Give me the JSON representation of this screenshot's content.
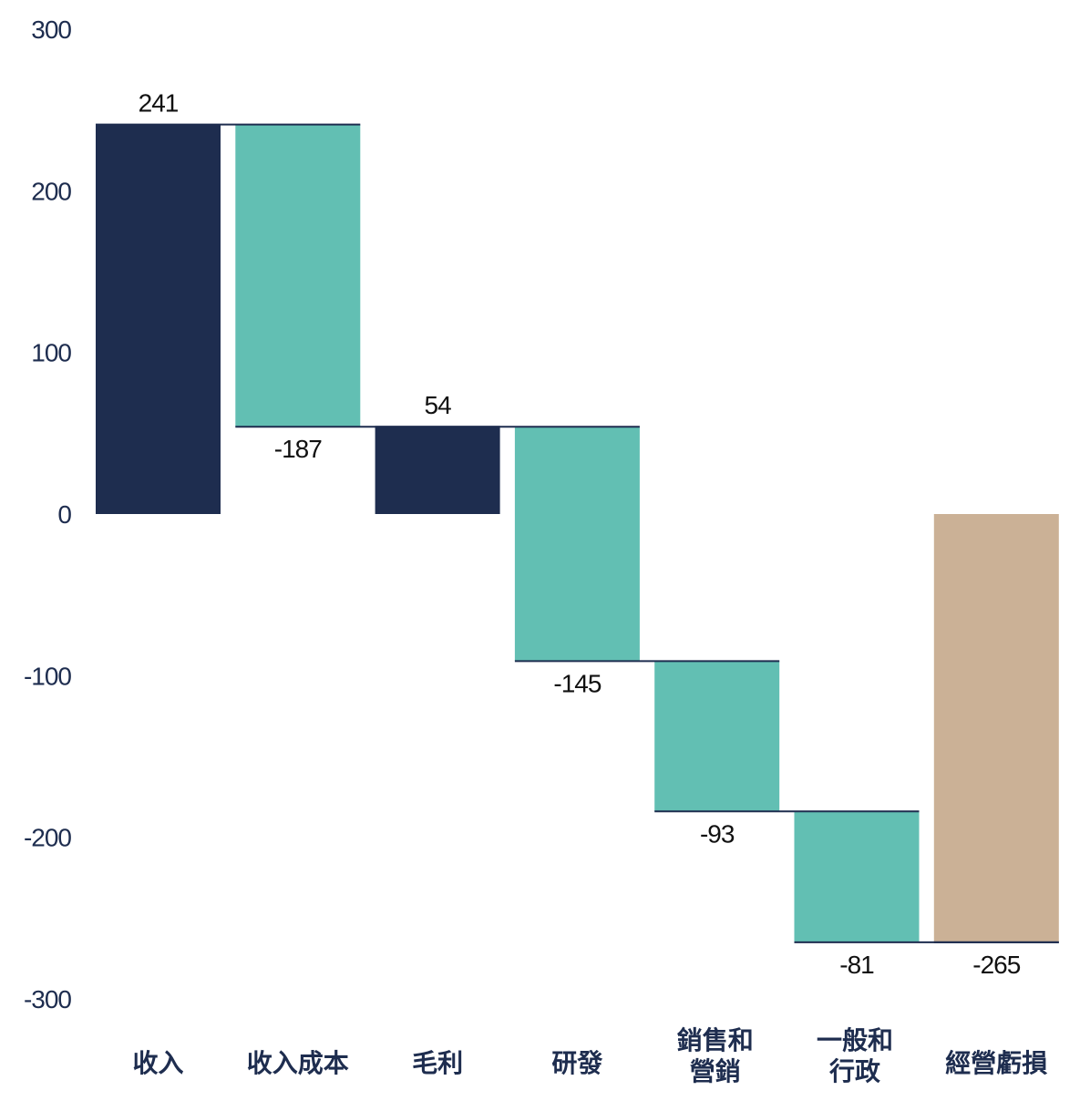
{
  "chart_data": {
    "type": "bar",
    "subtype": "waterfall",
    "categories": [
      [
        "收入"
      ],
      [
        "收入成本"
      ],
      [
        "毛利"
      ],
      [
        "研發"
      ],
      [
        "銷售和",
        "營銷"
      ],
      [
        "一般和",
        "行政"
      ],
      [
        "經營虧損"
      ]
    ],
    "values": [
      241,
      -187,
      54,
      -145,
      -93,
      -81,
      -265
    ],
    "data_labels": [
      "241",
      "-187",
      "54",
      "-145",
      "-93",
      "-81",
      "-265"
    ],
    "kinds": [
      "total",
      "delta",
      "total",
      "delta",
      "delta",
      "delta",
      "total"
    ],
    "ylim": [
      -300,
      300
    ],
    "yticks": [
      "300",
      "200",
      "100",
      "0",
      "-100",
      "-200",
      "-300"
    ],
    "grid": false,
    "colors": {
      "total": "#1e2d4f",
      "delta": "#62bfb3",
      "final": "#cbb196",
      "axis_text": "#1e2d4f",
      "connector": "#1e2d4f"
    }
  }
}
